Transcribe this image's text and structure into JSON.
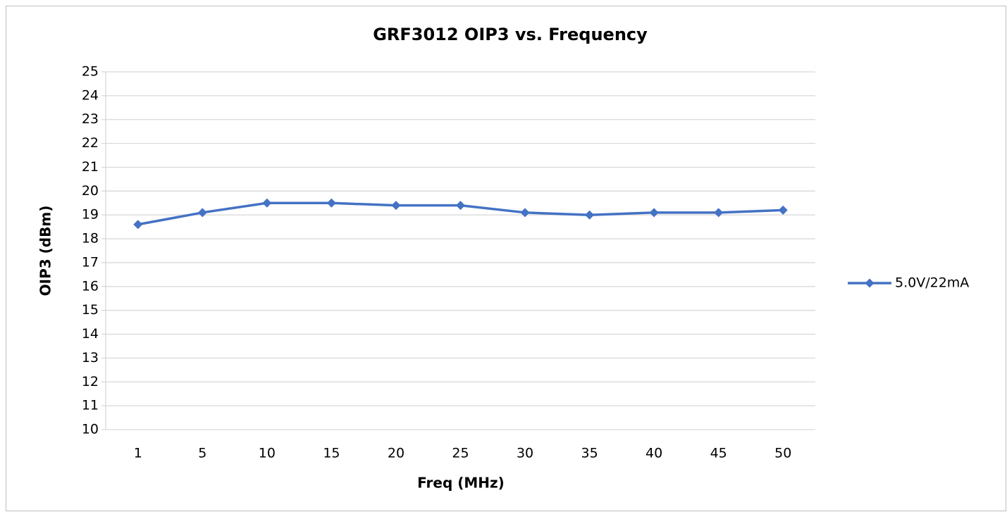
{
  "chart_data": {
    "type": "line",
    "title": "GRF3012 OIP3 vs. Frequency",
    "x_label": "Freq (MHz)",
    "y_label": "OIP3 (dBm)",
    "categories": [
      "1",
      "5",
      "10",
      "15",
      "20",
      "25",
      "30",
      "35",
      "40",
      "45",
      "50"
    ],
    "series": [
      {
        "name": "5.0V/22mA",
        "color": "#4472c4",
        "values": [
          18.6,
          19.1,
          19.5,
          19.5,
          19.4,
          19.4,
          19.1,
          19.0,
          19.1,
          19.1,
          19.2
        ]
      }
    ],
    "ylim": [
      10,
      25
    ],
    "yticks": [
      10,
      11,
      12,
      13,
      14,
      15,
      16,
      17,
      18,
      19,
      20,
      21,
      22,
      23,
      24,
      25
    ],
    "grid": true,
    "legend": "right"
  }
}
